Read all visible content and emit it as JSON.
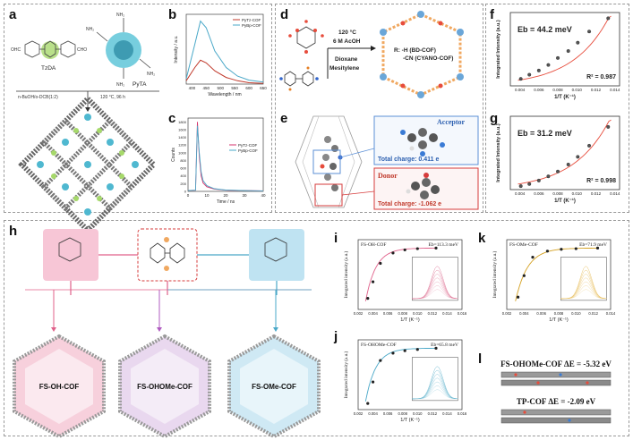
{
  "panels": {
    "a": "a",
    "b": "b",
    "c": "c",
    "d": "d",
    "e": "e",
    "f": "f",
    "g": "g",
    "h": "h",
    "i": "i",
    "j": "j",
    "k": "k",
    "l": "l"
  },
  "panel_a": {
    "molecule1": "TzDA",
    "molecule2": "PyTA",
    "conditions_left": "n-BuOH/o-DCB(1:2)",
    "conditions_right": "120 °C, 96 h",
    "cho_label": "OHC",
    "cho_label2": "CHO",
    "nh2": "NH₂"
  },
  "panel_b": {
    "ylabel": "Intensity / a.u.",
    "xlabel": "Wavelength / nm",
    "legend": [
      "PyTz-COF",
      "PyBp-COF"
    ],
    "xticks": [
      "400",
      "450",
      "500",
      "550",
      "600",
      "650"
    ]
  },
  "panel_c": {
    "ylabel": "Counts",
    "xlabel": "Time / ns",
    "legend": [
      "PyTz-COF",
      "PyBp-COF"
    ],
    "yticks": [
      "0",
      "200",
      "400",
      "600",
      "800",
      "1000",
      "1200",
      "1400",
      "1600",
      "1800"
    ],
    "xticks": [
      "0",
      "10",
      "20",
      "30",
      "40"
    ]
  },
  "panel_d": {
    "temp": "120 °C",
    "acid": "6 M AcOH",
    "solvent1": "Dioxane",
    "solvent2": "Mesitylene",
    "r_line1": "R: -H   (BD-COF)",
    "r_line2": "-CN (CYANO-COF)"
  },
  "panel_e": {
    "acceptor": "Acceptor",
    "acceptor_charge": "Total charge: 0.411 e",
    "donor": "Donor",
    "donor_charge": "Total charge: -1.062 e"
  },
  "panel_f": {
    "eb": "Eb = 44.2 meV",
    "r2": "R² = 0.987",
    "ylabel": "Integrated Intensity (a.u.)",
    "xlabel": "1/T (K⁻¹)",
    "xticks": [
      "0.004",
      "0.006",
      "0.008",
      "0.010",
      "0.012",
      "0.014"
    ]
  },
  "panel_g": {
    "eb": "Eb = 31.2 meV",
    "r2": "R² = 0.998",
    "ylabel": "Integrated Intensity (a.u.)",
    "xlabel": "1/T (K⁻¹)",
    "xticks": [
      "0.004",
      "0.006",
      "0.008",
      "0.010",
      "0.012",
      "0.014"
    ]
  },
  "panel_h": {
    "cof1": "FS-OH-COF",
    "cof2": "FS-OHOMe-COF",
    "cof3": "FS-OMe-COF"
  },
  "panel_i": {
    "name": "FS-OH-COF",
    "eb": "Eb=113.3 meV",
    "ylabel": "Integrated intensity (a.u.)",
    "xlabel": "1/T (K⁻¹)",
    "xticks": [
      "0.002",
      "0.004",
      "0.006",
      "0.008",
      "0.010",
      "0.012",
      "0.014",
      "0.016"
    ]
  },
  "panel_j": {
    "name": "FS-OHOMe-COF",
    "eb": "Eb=65.8 meV",
    "ylabel": "Integrated intensity (a.u.)",
    "xlabel": "1/T (K⁻¹)",
    "xticks": [
      "0.002",
      "0.004",
      "0.006",
      "0.008",
      "0.010",
      "0.012",
      "0.014",
      "0.016"
    ]
  },
  "panel_k": {
    "name": "FS-OMe-COF",
    "eb": "Eb=71.9 meV",
    "ylabel": "Integrated intensity (a.u.)",
    "xlabel": "1/T (K⁻¹)",
    "xticks": [
      "0.002",
      "0.004",
      "0.006",
      "0.008",
      "0.010",
      "0.012",
      "0.014"
    ]
  },
  "panel_l": {
    "line1": "FS-OHOMe-COF ΔE = -5.32 eV",
    "line2": "TP-COF ΔE = -2.09 eV"
  },
  "chart_data": [
    {
      "type": "line",
      "panel": "b",
      "xlabel": "Wavelength / nm",
      "ylabel": "Intensity / a.u.",
      "series": [
        {
          "name": "PyTz-COF",
          "color": "#c0392b",
          "x": [
            380,
            410,
            430,
            450,
            480,
            520,
            560,
            600,
            650
          ],
          "values": [
            0.05,
            0.25,
            0.36,
            0.32,
            0.2,
            0.1,
            0.05,
            0.02,
            0.01
          ]
        },
        {
          "name": "PyBp-COF",
          "color": "#4aa8c8",
          "x": [
            380,
            410,
            430,
            450,
            480,
            520,
            560,
            600,
            650
          ],
          "values": [
            0.08,
            0.6,
            0.95,
            0.85,
            0.5,
            0.25,
            0.12,
            0.06,
            0.03
          ]
        }
      ]
    },
    {
      "type": "line",
      "panel": "c",
      "xlabel": "Time / ns",
      "ylabel": "Counts",
      "xlim": [
        0,
        40
      ],
      "ylim": [
        0,
        1900
      ],
      "series": [
        {
          "name": "PyTz-COF",
          "color": "#d6336c",
          "x": [
            0,
            4,
            5,
            6,
            7,
            8,
            10,
            14,
            20,
            30,
            40
          ],
          "values": [
            20,
            30,
            1800,
            900,
            400,
            220,
            120,
            60,
            30,
            20,
            15
          ]
        },
        {
          "name": "PyBp-COF",
          "color": "#4aa8c8",
          "x": [
            0,
            4,
            5,
            6,
            7,
            8,
            10,
            14,
            20,
            30,
            40
          ],
          "values": [
            20,
            30,
            1700,
            1000,
            500,
            280,
            150,
            70,
            35,
            22,
            15
          ]
        }
      ]
    },
    {
      "type": "scatter",
      "panel": "f",
      "xlim": [
        0.004,
        0.014
      ],
      "x": [
        0.0041,
        0.005,
        0.006,
        0.007,
        0.008,
        0.0091,
        0.0101,
        0.0113,
        0.0133
      ],
      "values": [
        0.1,
        0.16,
        0.22,
        0.3,
        0.4,
        0.5,
        0.62,
        0.78,
        0.97
      ]
    },
    {
      "type": "scatter",
      "panel": "g",
      "xlim": [
        0.004,
        0.014
      ],
      "x": [
        0.0041,
        0.005,
        0.006,
        0.007,
        0.008,
        0.0091,
        0.0101,
        0.0113,
        0.0133
      ],
      "values": [
        0.05,
        0.08,
        0.13,
        0.19,
        0.26,
        0.36,
        0.47,
        0.63,
        0.9
      ]
    },
    {
      "type": "scatter",
      "panel": "i",
      "xlim": [
        0.002,
        0.016
      ],
      "x": [
        0.0033,
        0.004,
        0.005,
        0.0067,
        0.0083,
        0.01,
        0.0125
      ],
      "values": [
        0.18,
        0.45,
        0.75,
        0.92,
        0.97,
        0.99,
        1.0
      ]
    },
    {
      "type": "scatter",
      "panel": "j",
      "xlim": [
        0.002,
        0.016
      ],
      "x": [
        0.0033,
        0.004,
        0.005,
        0.0067,
        0.0083,
        0.01,
        0.0125
      ],
      "values": [
        0.1,
        0.45,
        0.8,
        0.92,
        0.96,
        0.98,
        1.0
      ]
    },
    {
      "type": "scatter",
      "panel": "k",
      "xlim": [
        0.002,
        0.014
      ],
      "x": [
        0.0033,
        0.004,
        0.005,
        0.0067,
        0.0083,
        0.01,
        0.0125
      ],
      "values": [
        0.2,
        0.55,
        0.85,
        0.95,
        0.98,
        0.99,
        1.0
      ]
    }
  ]
}
